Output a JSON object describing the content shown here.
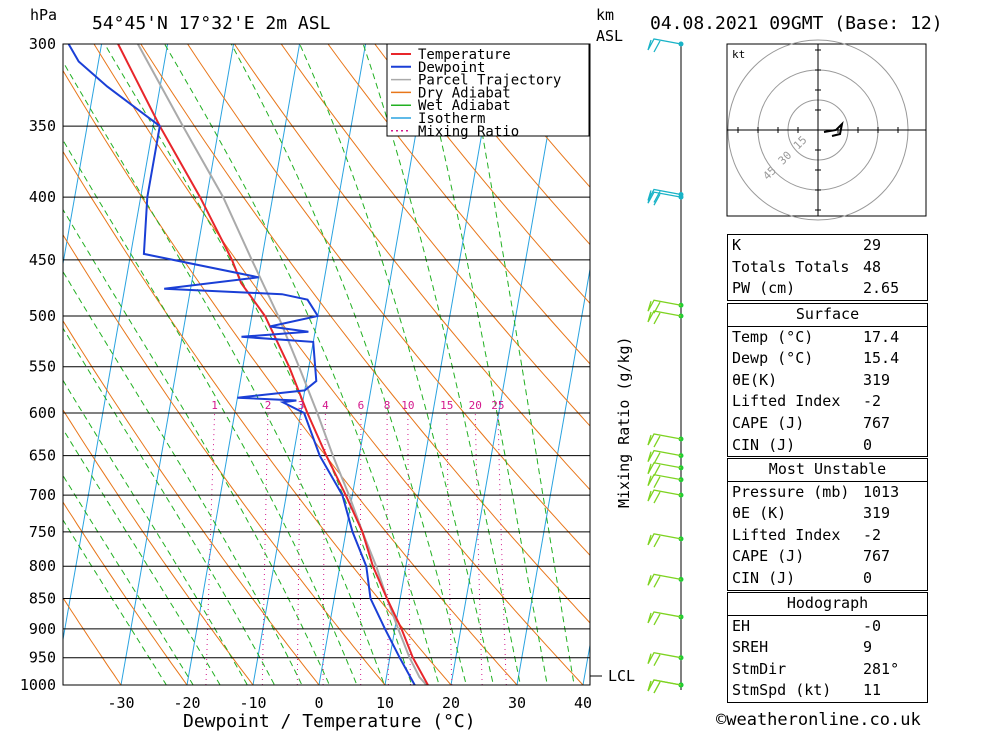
{
  "header": {
    "location": "54°45'N 17°32'E 2m ASL",
    "hpa_label": "hPa",
    "km_label": "km",
    "asl_label": "ASL",
    "datetime": "04.08.2021 09GMT (Base: 12)"
  },
  "chart_data": {
    "type": "skew-t",
    "xlabel": "Dewpoint / Temperature (°C)",
    "ylabel_right": "Mixing Ratio (g/kg)",
    "pressure_ticks": [
      300,
      350,
      400,
      450,
      500,
      550,
      600,
      650,
      700,
      750,
      800,
      850,
      900,
      950,
      1000
    ],
    "temperature_ticks": [
      -30,
      -20,
      -10,
      0,
      10,
      20,
      30,
      40
    ],
    "xlim": [
      -40,
      40
    ],
    "ylim_hpa": [
      1000,
      300
    ],
    "legend": [
      "Temperature",
      "Dewpoint",
      "Parcel Trajectory",
      "Dry Adiabat",
      "Wet Adiabat",
      "Isotherm",
      "Mixing Ratio"
    ],
    "mixing_ratio_labels": [
      "1",
      "2",
      "3",
      "4",
      "6",
      "8",
      "10",
      "15",
      "20",
      "25"
    ],
    "mixing_ratio_values": [
      1,
      2,
      3,
      4,
      6,
      8,
      10,
      15,
      20,
      25
    ],
    "lcl_label": "LCL",
    "lcl_hpa": 985,
    "temperature_profile": [
      {
        "p": 1013,
        "t": 17.4
      },
      {
        "p": 1000,
        "t": 16.5
      },
      {
        "p": 950,
        "t": 13.5
      },
      {
        "p": 900,
        "t": 11.0
      },
      {
        "p": 850,
        "t": 8.0
      },
      {
        "p": 800,
        "t": 5.0
      },
      {
        "p": 750,
        "t": 2.5
      },
      {
        "p": 700,
        "t": -1.0
      },
      {
        "p": 650,
        "t": -5.0
      },
      {
        "p": 600,
        "t": -9.0
      },
      {
        "p": 550,
        "t": -13.0
      },
      {
        "p": 500,
        "t": -18.0
      },
      {
        "p": 470,
        "t": -22.5
      },
      {
        "p": 450,
        "t": -24.5
      },
      {
        "p": 400,
        "t": -31.0
      },
      {
        "p": 350,
        "t": -39.0
      },
      {
        "p": 300,
        "t": -47.5
      }
    ],
    "dewpoint_profile": [
      {
        "p": 1013,
        "t": 15.4
      },
      {
        "p": 1000,
        "t": 14.5
      },
      {
        "p": 950,
        "t": 11.5
      },
      {
        "p": 900,
        "t": 8.5
      },
      {
        "p": 850,
        "t": 5.5
      },
      {
        "p": 800,
        "t": 4.0
      },
      {
        "p": 750,
        "t": 1.0
      },
      {
        "p": 700,
        "t": -1.5
      },
      {
        "p": 650,
        "t": -6.0
      },
      {
        "p": 600,
        "t": -9.5
      },
      {
        "p": 588,
        "t": -13.0
      },
      {
        "p": 586,
        "t": -11.0
      },
      {
        "p": 583,
        "t": -20.0
      },
      {
        "p": 575,
        "t": -10.0
      },
      {
        "p": 565,
        "t": -8.5
      },
      {
        "p": 525,
        "t": -10.0
      },
      {
        "p": 520,
        "t": -21.0
      },
      {
        "p": 515,
        "t": -11.0
      },
      {
        "p": 510,
        "t": -17.0
      },
      {
        "p": 500,
        "t": -10.0
      },
      {
        "p": 485,
        "t": -12.0
      },
      {
        "p": 480,
        "t": -16.0
      },
      {
        "p": 475,
        "t": -34.0
      },
      {
        "p": 465,
        "t": -20.0
      },
      {
        "p": 445,
        "t": -38.0
      },
      {
        "p": 400,
        "t": -39.0
      },
      {
        "p": 350,
        "t": -39.0
      },
      {
        "p": 325,
        "t": -48.0
      },
      {
        "p": 310,
        "t": -53.0
      },
      {
        "p": 300,
        "t": -55.0
      }
    ],
    "parcel_profile": [
      {
        "p": 1013,
        "t": 17.4
      },
      {
        "p": 985,
        "t": 15.0
      },
      {
        "p": 950,
        "t": 13.0
      },
      {
        "p": 900,
        "t": 10.5
      },
      {
        "p": 850,
        "t": 8.0
      },
      {
        "p": 800,
        "t": 5.5
      },
      {
        "p": 750,
        "t": 2.5
      },
      {
        "p": 700,
        "t": -0.5
      },
      {
        "p": 650,
        "t": -4.0
      },
      {
        "p": 600,
        "t": -7.5
      },
      {
        "p": 550,
        "t": -11.5
      },
      {
        "p": 500,
        "t": -16.0
      },
      {
        "p": 450,
        "t": -21.5
      },
      {
        "p": 400,
        "t": -27.5
      },
      {
        "p": 350,
        "t": -35.5
      },
      {
        "p": 300,
        "t": -44.5
      }
    ],
    "wind_barb_levels_hpa": [
      1000,
      1005,
      950,
      880,
      820,
      760,
      700,
      680,
      665,
      650,
      630,
      500,
      490,
      400,
      398,
      300
    ]
  },
  "hodograph": {
    "unit_label": "kt",
    "ring_labels": [
      "15",
      "30",
      "45"
    ]
  },
  "indices": {
    "rows": [
      {
        "label": "K",
        "value": "29"
      },
      {
        "label": "Totals Totals",
        "value": "48"
      },
      {
        "label": "PW (cm)",
        "value": "2.65"
      }
    ]
  },
  "surface": {
    "title": "Surface",
    "rows": [
      {
        "label": "Temp (°C)",
        "value": "17.4"
      },
      {
        "label": "Dewp (°C)",
        "value": "15.4"
      },
      {
        "label": "θE(K)",
        "value": "319"
      },
      {
        "label": "Lifted Index",
        "value": "-2"
      },
      {
        "label": "CAPE (J)",
        "value": "767"
      },
      {
        "label": "CIN (J)",
        "value": "0"
      }
    ]
  },
  "most_unstable": {
    "title": "Most Unstable",
    "rows": [
      {
        "label": "Pressure (mb)",
        "value": "1013"
      },
      {
        "label": "θE (K)",
        "value": "319"
      },
      {
        "label": "Lifted Index",
        "value": "-2"
      },
      {
        "label": "CAPE (J)",
        "value": "767"
      },
      {
        "label": "CIN (J)",
        "value": "0"
      }
    ]
  },
  "hodograph_table": {
    "title": "Hodograph",
    "rows": [
      {
        "label": "EH",
        "value": "-0"
      },
      {
        "label": "SREH",
        "value": "9"
      },
      {
        "label": "StmDir",
        "value": "281°"
      },
      {
        "label": "StmSpd (kt)",
        "value": "11"
      }
    ]
  },
  "footer": {
    "copyright": "©weatheronline.co.uk"
  },
  "colors": {
    "temperature": "#e8262b",
    "dewpoint": "#1a3fd6",
    "parcel": "#aaaaaa",
    "dry_adiabat": "#e8761a",
    "wet_adiabat": "#22b022",
    "isotherm": "#2aa3e0",
    "mixing_ratio": "#d4188c",
    "wind_barb": "#7ed321"
  }
}
